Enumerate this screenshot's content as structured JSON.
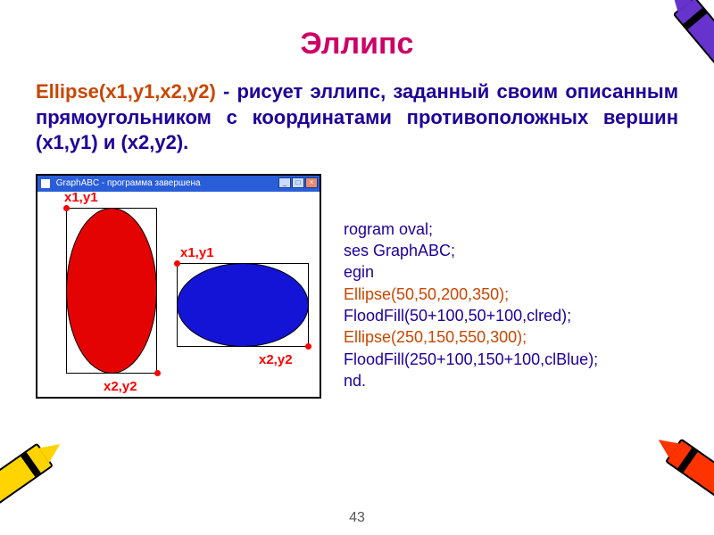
{
  "title": {
    "text": "Эллипс",
    "color": "#cc0066"
  },
  "description": {
    "fn_text": "Ellipse(x1,y1,x2,y2)",
    "fn_color": "#c94600",
    "rest": " - рисует эллипс, заданный своим описанным прямоугольником с координатами противоположных вершин (x1,y1) и (x2,y2).",
    "text_color": "#1e0099"
  },
  "window": {
    "caption": "GraphABC - программа завершена",
    "btn_min": "_",
    "btn_max": "□",
    "btn_close": "×"
  },
  "diagram": {
    "ellipse1_fill": "#e30303",
    "ellipse2_fill": "#1414d6",
    "labels": {
      "p1": "x1,y1",
      "p2": "x2,y2",
      "p3": "x1,y1",
      "p4": "x2,y2"
    }
  },
  "code": {
    "lines": [
      {
        "text": "rogram oval;",
        "color": "#1e0099"
      },
      {
        "text": "ses GraphABC;",
        "color": "#1e0099"
      },
      {
        "text": "egin",
        "color": "#1e0099"
      },
      {
        "text": "Ellipse(50,50,200,350);",
        "color": "#c94600"
      },
      {
        "text": "FloodFill(50+100,50+100,clred);",
        "color": "#1e0099"
      },
      {
        "text": "Ellipse(250,150,550,300);",
        "color": "#c94600"
      },
      {
        "text": "FloodFill(250+100,150+100,clBlue);",
        "color": "#1e0099"
      },
      {
        "text": "nd.",
        "color": "#1e0099"
      }
    ]
  },
  "page_number": "43",
  "crayons": {
    "top_right": {
      "body": "#6633cc",
      "tip": "#6633cc"
    },
    "bottom_left": {
      "body": "#ffd400",
      "tip": "#ffd400"
    },
    "bottom_right": {
      "body": "#ff3300",
      "tip": "#ff3300"
    }
  }
}
